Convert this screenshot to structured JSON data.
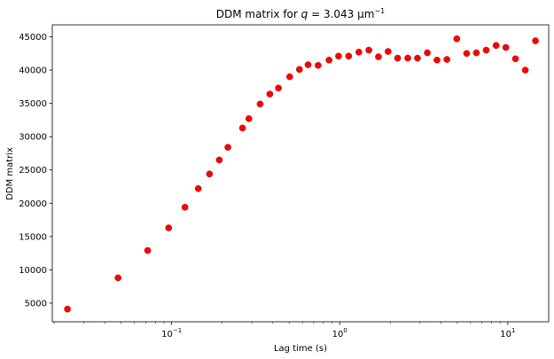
{
  "chart_data": {
    "type": "scatter",
    "title": {
      "prefix": "DDM matrix for ",
      "var": "q",
      "mid": " = 3.043 ",
      "unit": "μm",
      "exp": "−1"
    },
    "xlabel": "Lag time (s)",
    "ylabel": "DDM matrix",
    "xscale": "log",
    "xlim": [
      0.0195,
      17.5
    ],
    "ylim": [
      2200,
      46800
    ],
    "grid": false,
    "marker_color": "#ff0000",
    "marker_edge_color": "#8b0000",
    "x_major_ticks": [
      {
        "value": 0.1,
        "base": "10",
        "exp": "−1"
      },
      {
        "value": 1,
        "base": "10",
        "exp": "0"
      },
      {
        "value": 10,
        "base": "10",
        "exp": "1"
      }
    ],
    "y_ticks": [
      {
        "value": 5000,
        "label": "5000"
      },
      {
        "value": 10000,
        "label": "10000"
      },
      {
        "value": 15000,
        "label": "15000"
      },
      {
        "value": 20000,
        "label": "20000"
      },
      {
        "value": 25000,
        "label": "25000"
      },
      {
        "value": 30000,
        "label": "30000"
      },
      {
        "value": 35000,
        "label": "35000"
      },
      {
        "value": 40000,
        "label": "40000"
      },
      {
        "value": 45000,
        "label": "45000"
      }
    ],
    "points": [
      {
        "x": 0.024,
        "y": 4100
      },
      {
        "x": 0.048,
        "y": 8800
      },
      {
        "x": 0.072,
        "y": 12900
      },
      {
        "x": 0.096,
        "y": 16300
      },
      {
        "x": 0.12,
        "y": 19400
      },
      {
        "x": 0.144,
        "y": 22200
      },
      {
        "x": 0.168,
        "y": 24400
      },
      {
        "x": 0.192,
        "y": 26500
      },
      {
        "x": 0.216,
        "y": 28400
      },
      {
        "x": 0.264,
        "y": 31300
      },
      {
        "x": 0.288,
        "y": 32700
      },
      {
        "x": 0.336,
        "y": 34900
      },
      {
        "x": 0.384,
        "y": 36400
      },
      {
        "x": 0.432,
        "y": 37300
      },
      {
        "x": 0.504,
        "y": 39000
      },
      {
        "x": 0.576,
        "y": 40100
      },
      {
        "x": 0.648,
        "y": 40800
      },
      {
        "x": 0.744,
        "y": 40700
      },
      {
        "x": 0.864,
        "y": 41500
      },
      {
        "x": 0.984,
        "y": 42100
      },
      {
        "x": 1.13,
        "y": 42100
      },
      {
        "x": 1.3,
        "y": 42700
      },
      {
        "x": 1.49,
        "y": 43000
      },
      {
        "x": 1.7,
        "y": 42000
      },
      {
        "x": 1.94,
        "y": 42800
      },
      {
        "x": 2.21,
        "y": 41800
      },
      {
        "x": 2.54,
        "y": 41800
      },
      {
        "x": 2.9,
        "y": 41800
      },
      {
        "x": 3.32,
        "y": 42600
      },
      {
        "x": 3.79,
        "y": 41500
      },
      {
        "x": 4.34,
        "y": 41600
      },
      {
        "x": 4.97,
        "y": 44700
      },
      {
        "x": 5.69,
        "y": 42500
      },
      {
        "x": 6.5,
        "y": 42600
      },
      {
        "x": 7.44,
        "y": 43000
      },
      {
        "x": 8.51,
        "y": 43700
      },
      {
        "x": 9.73,
        "y": 43400
      },
      {
        "x": 11.1,
        "y": 41700
      },
      {
        "x": 12.7,
        "y": 40000
      },
      {
        "x": 14.6,
        "y": 44400
      }
    ]
  }
}
